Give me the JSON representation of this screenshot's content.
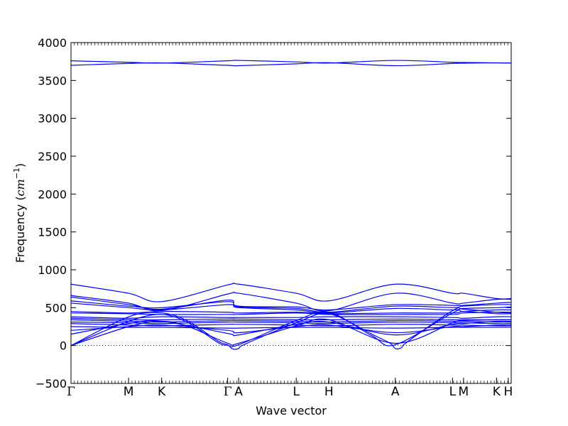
{
  "chart_data": {
    "type": "line",
    "xlabel": "Wave vector",
    "ylabel_main": "Frequency (",
    "ylabel_unit_base": "cm",
    "ylabel_unit_exp": "−1",
    "ylabel_close": ")",
    "ylim": [
      -500,
      4000
    ],
    "yticks": [
      "−500",
      "0",
      "500",
      "1000",
      "1500",
      "2000",
      "2500",
      "3000",
      "3500",
      "4000"
    ],
    "ytick_values": [
      -500,
      0,
      500,
      1000,
      1500,
      2000,
      2500,
      3000,
      3500,
      4000
    ],
    "path_length": 12,
    "kpoints": [
      {
        "label": "Γ",
        "x": 0
      },
      {
        "label": "M",
        "x": 1.57
      },
      {
        "label": "K",
        "x": 2.47
      },
      {
        "label": "Γ",
        "x": 4.27
      },
      {
        "label": "A",
        "x": 4.57
      },
      {
        "label": "L",
        "x": 6.14
      },
      {
        "label": "H",
        "x": 7.03
      },
      {
        "label": "A",
        "x": 8.84
      },
      {
        "label": "L",
        "x": 10.4
      },
      {
        "label": "M",
        "x": 10.7
      },
      {
        "label": "K",
        "x": 11.6
      },
      {
        "label": "H",
        "x": 11.92
      }
    ],
    "zero_line": true,
    "line_color": "#0000ff",
    "series": [
      {
        "points": [
          [
            0,
            3760
          ],
          [
            1.57,
            3740
          ],
          [
            2.47,
            3730
          ],
          [
            4.27,
            3760
          ],
          [
            4.57,
            3765
          ],
          [
            6.14,
            3745
          ],
          [
            7.03,
            3730
          ],
          [
            8.84,
            3765
          ],
          [
            10.4,
            3740
          ],
          [
            10.7,
            3738
          ],
          [
            11.6,
            3732
          ],
          [
            12,
            3730
          ]
        ]
      },
      {
        "points": [
          [
            0,
            3700
          ],
          [
            1.57,
            3725
          ],
          [
            2.47,
            3732
          ],
          [
            4.27,
            3700
          ],
          [
            4.57,
            3695
          ],
          [
            6.14,
            3720
          ],
          [
            7.03,
            3735
          ],
          [
            8.84,
            3695
          ],
          [
            10.4,
            3725
          ],
          [
            10.7,
            3728
          ],
          [
            11.6,
            3733
          ],
          [
            12,
            3730
          ]
        ]
      },
      {
        "points": [
          [
            0,
            810
          ],
          [
            1.57,
            690
          ],
          [
            2.47,
            580
          ],
          [
            4.27,
            800
          ],
          [
            4.57,
            810
          ],
          [
            6.14,
            690
          ],
          [
            7.03,
            590
          ],
          [
            8.84,
            810
          ],
          [
            10.4,
            690
          ],
          [
            10.7,
            690
          ],
          [
            11.6,
            620
          ],
          [
            12,
            620
          ]
        ]
      },
      {
        "points": [
          [
            0,
            660
          ],
          [
            1.57,
            560
          ],
          [
            2.47,
            460
          ],
          [
            4.27,
            680
          ],
          [
            4.57,
            690
          ],
          [
            6.14,
            560
          ],
          [
            7.03,
            460
          ],
          [
            8.84,
            690
          ],
          [
            10.4,
            560
          ],
          [
            10.7,
            560
          ],
          [
            11.6,
            610
          ],
          [
            12,
            610
          ]
        ]
      },
      {
        "points": [
          [
            0,
            640
          ],
          [
            1.57,
            540
          ],
          [
            2.47,
            480
          ],
          [
            4.27,
            600
          ],
          [
            4.57,
            520
          ],
          [
            6.14,
            510
          ],
          [
            7.03,
            470
          ],
          [
            8.84,
            540
          ],
          [
            10.4,
            530
          ],
          [
            10.7,
            530
          ],
          [
            11.6,
            560
          ],
          [
            12,
            570
          ]
        ]
      },
      {
        "points": [
          [
            0,
            590
          ],
          [
            1.57,
            520
          ],
          [
            2.47,
            500
          ],
          [
            4.27,
            580
          ],
          [
            4.57,
            510
          ],
          [
            6.14,
            490
          ],
          [
            7.03,
            440
          ],
          [
            8.84,
            520
          ],
          [
            10.4,
            500
          ],
          [
            10.7,
            520
          ],
          [
            11.6,
            540
          ],
          [
            12,
            540
          ]
        ]
      },
      {
        "points": [
          [
            0,
            560
          ],
          [
            1.57,
            500
          ],
          [
            2.47,
            470
          ],
          [
            4.27,
            540
          ],
          [
            4.57,
            500
          ],
          [
            6.14,
            470
          ],
          [
            7.03,
            430
          ],
          [
            8.84,
            490
          ],
          [
            10.4,
            470
          ],
          [
            10.7,
            490
          ],
          [
            11.6,
            500
          ],
          [
            12,
            510
          ]
        ]
      },
      {
        "points": [
          [
            0,
            450
          ],
          [
            1.57,
            430
          ],
          [
            2.47,
            450
          ],
          [
            4.27,
            440
          ],
          [
            4.57,
            430
          ],
          [
            6.14,
            440
          ],
          [
            7.03,
            420
          ],
          [
            8.84,
            430
          ],
          [
            10.4,
            430
          ],
          [
            10.7,
            450
          ],
          [
            11.6,
            470
          ],
          [
            12,
            470
          ]
        ]
      },
      {
        "points": [
          [
            0,
            430
          ],
          [
            1.57,
            420
          ],
          [
            2.47,
            410
          ],
          [
            4.27,
            410
          ],
          [
            4.57,
            410
          ],
          [
            6.14,
            430
          ],
          [
            7.03,
            410
          ],
          [
            8.84,
            410
          ],
          [
            10.4,
            410
          ],
          [
            10.7,
            430
          ],
          [
            11.6,
            440
          ],
          [
            12,
            440
          ]
        ]
      },
      {
        "points": [
          [
            0,
            380
          ],
          [
            1.57,
            360
          ],
          [
            2.47,
            380
          ],
          [
            4.27,
            370
          ],
          [
            4.57,
            370
          ],
          [
            6.14,
            370
          ],
          [
            7.03,
            380
          ],
          [
            8.84,
            380
          ],
          [
            10.4,
            370
          ],
          [
            10.7,
            360
          ],
          [
            11.6,
            380
          ],
          [
            12,
            380
          ]
        ]
      },
      {
        "points": [
          [
            0,
            360
          ],
          [
            1.57,
            340
          ],
          [
            2.47,
            340
          ],
          [
            4.27,
            350
          ],
          [
            4.57,
            350
          ],
          [
            6.14,
            340
          ],
          [
            7.03,
            340
          ],
          [
            8.84,
            350
          ],
          [
            10.4,
            340
          ],
          [
            10.7,
            340
          ],
          [
            11.6,
            340
          ],
          [
            12,
            340
          ]
        ]
      },
      {
        "points": [
          [
            0,
            340
          ],
          [
            1.57,
            320
          ],
          [
            2.47,
            310
          ],
          [
            4.27,
            330
          ],
          [
            4.57,
            330
          ],
          [
            6.14,
            320
          ],
          [
            7.03,
            310
          ],
          [
            8.84,
            330
          ],
          [
            10.4,
            320
          ],
          [
            10.7,
            320
          ],
          [
            11.6,
            310
          ],
          [
            12,
            310
          ]
        ]
      },
      {
        "points": [
          [
            0,
            310
          ],
          [
            1.57,
            300
          ],
          [
            2.47,
            290
          ],
          [
            4.27,
            310
          ],
          [
            4.57,
            310
          ],
          [
            6.14,
            300
          ],
          [
            7.03,
            290
          ],
          [
            8.84,
            310
          ],
          [
            10.4,
            300
          ],
          [
            10.7,
            300
          ],
          [
            11.6,
            290
          ],
          [
            12,
            290
          ]
        ]
      },
      {
        "points": [
          [
            0,
            290
          ],
          [
            1.57,
            270
          ],
          [
            2.47,
            260
          ],
          [
            4.27,
            280
          ],
          [
            4.57,
            280
          ],
          [
            6.14,
            270
          ],
          [
            7.03,
            260
          ],
          [
            8.84,
            280
          ],
          [
            10.4,
            270
          ],
          [
            10.7,
            270
          ],
          [
            11.6,
            260
          ],
          [
            12,
            260
          ]
        ]
      },
      {
        "points": [
          [
            0,
            250
          ],
          [
            1.57,
            240
          ],
          [
            2.47,
            240
          ],
          [
            4.27,
            230
          ],
          [
            4.57,
            230
          ],
          [
            6.14,
            240
          ],
          [
            7.03,
            240
          ],
          [
            8.84,
            230
          ],
          [
            10.4,
            240
          ],
          [
            10.7,
            240
          ],
          [
            11.6,
            240
          ],
          [
            12,
            240
          ]
        ]
      },
      {
        "points": [
          [
            0,
            200
          ],
          [
            1.57,
            250
          ],
          [
            2.47,
            270
          ],
          [
            4.27,
            200
          ],
          [
            4.57,
            170
          ],
          [
            6.14,
            250
          ],
          [
            7.03,
            270
          ],
          [
            8.84,
            170
          ],
          [
            10.4,
            250
          ],
          [
            10.7,
            250
          ],
          [
            11.6,
            270
          ],
          [
            12,
            270
          ]
        ]
      },
      {
        "points": [
          [
            0,
            150
          ],
          [
            1.57,
            290
          ],
          [
            2.47,
            320
          ],
          [
            4.27,
            160
          ],
          [
            4.57,
            140
          ],
          [
            6.14,
            280
          ],
          [
            7.03,
            310
          ],
          [
            8.84,
            140
          ],
          [
            10.4,
            280
          ],
          [
            10.7,
            290
          ],
          [
            11.6,
            320
          ],
          [
            12,
            320
          ]
        ]
      },
      {
        "points": [
          [
            0,
            0
          ],
          [
            1.57,
            380
          ],
          [
            2.47,
            430
          ],
          [
            3.2,
            320
          ],
          [
            4.0,
            60
          ],
          [
            4.27,
            10
          ],
          [
            4.4,
            -45
          ],
          [
            4.57,
            -40
          ],
          [
            4.75,
            20
          ],
          [
            6.14,
            300
          ],
          [
            7.03,
            420
          ],
          [
            8.2,
            150
          ],
          [
            8.7,
            30
          ],
          [
            8.84,
            -40
          ],
          [
            9.0,
            -30
          ],
          [
            9.2,
            60
          ],
          [
            10.4,
            460
          ],
          [
            10.7,
            480
          ],
          [
            11.6,
            440
          ],
          [
            12,
            430
          ]
        ]
      },
      {
        "points": [
          [
            0,
            0
          ],
          [
            1.57,
            320
          ],
          [
            2.47,
            410
          ],
          [
            3.2,
            300
          ],
          [
            4.0,
            40
          ],
          [
            4.27,
            5
          ],
          [
            4.57,
            10
          ],
          [
            6.14,
            330
          ],
          [
            7.03,
            440
          ],
          [
            8.2,
            130
          ],
          [
            8.84,
            10
          ],
          [
            10.4,
            430
          ],
          [
            10.7,
            450
          ],
          [
            11.6,
            420
          ],
          [
            12,
            420
          ]
        ]
      },
      {
        "points": [
          [
            0,
            0
          ],
          [
            1.57,
            250
          ],
          [
            2.47,
            320
          ],
          [
            3.2,
            250
          ],
          [
            4.27,
            30
          ],
          [
            4.57,
            30
          ],
          [
            6.14,
            260
          ],
          [
            7.03,
            340
          ],
          [
            8.84,
            30
          ],
          [
            10.4,
            300
          ],
          [
            10.7,
            330
          ],
          [
            11.6,
            340
          ],
          [
            12,
            340
          ]
        ]
      }
    ]
  }
}
